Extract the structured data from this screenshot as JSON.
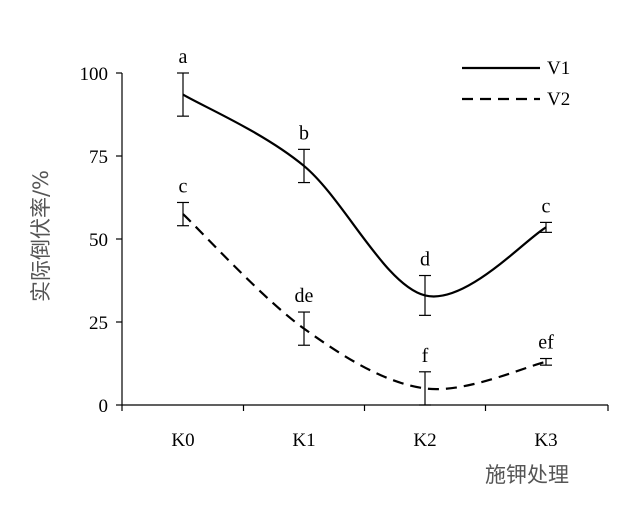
{
  "chart_data": {
    "type": "line",
    "categories": [
      "K0",
      "K1",
      "K2",
      "K3"
    ],
    "xlabel": "施钾处理",
    "ylabel": "实际倒伏率/%",
    "ylim": [
      0,
      100
    ],
    "yticks": [
      "0",
      "25",
      "50",
      "75",
      "100"
    ],
    "grid": false,
    "legend_position": "top-right",
    "series": [
      {
        "name": "V1",
        "line_style": "solid",
        "color": "#000000",
        "values": [
          93.5,
          72,
          33,
          53.5
        ],
        "error": [
          6.5,
          5,
          6,
          1.5
        ],
        "letters": [
          "a",
          "b",
          "d",
          "c"
        ]
      },
      {
        "name": "V2",
        "line_style": "dashed",
        "color": "#000000",
        "values": [
          57.5,
          23,
          5,
          13
        ],
        "error": [
          3.5,
          5,
          5,
          1
        ],
        "letters": [
          "c",
          "de",
          "f",
          "ef"
        ]
      }
    ]
  }
}
